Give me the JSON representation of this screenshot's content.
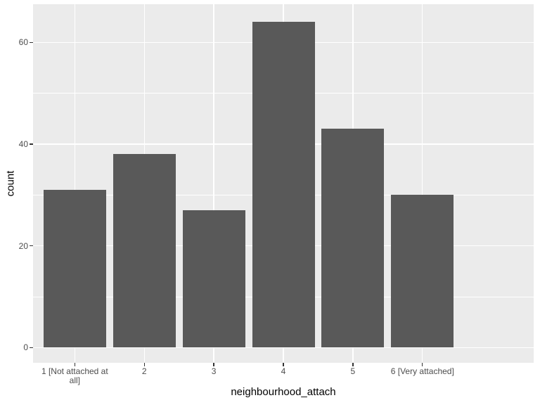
{
  "chart_data": {
    "type": "bar",
    "title": "",
    "xlabel": "neighbourhood_attach",
    "ylabel": "count",
    "categories": [
      "1 [Not attached at all]",
      "2",
      "3",
      "4",
      "5",
      "6 [Very attached]"
    ],
    "values": [
      31,
      38,
      27,
      64,
      43,
      30
    ],
    "ylim": [
      -3,
      67.5
    ],
    "yticks": [
      0,
      20,
      40,
      60
    ],
    "yticks_minor": [
      10,
      30,
      50
    ],
    "grid": "on",
    "legend": "none",
    "bar_width_fraction": 0.9,
    "x_expand": 0.6,
    "style": "ggplot2-grey-theme",
    "colors": {
      "bar_fill": "#595959",
      "panel_bg": "#EBEBEB",
      "grid": "#FFFFFF",
      "tick_mark": "#333333",
      "tick_label": "#4D4D4D",
      "axis_title": "#000000",
      "figure_bg": "#FFFFFF"
    }
  }
}
